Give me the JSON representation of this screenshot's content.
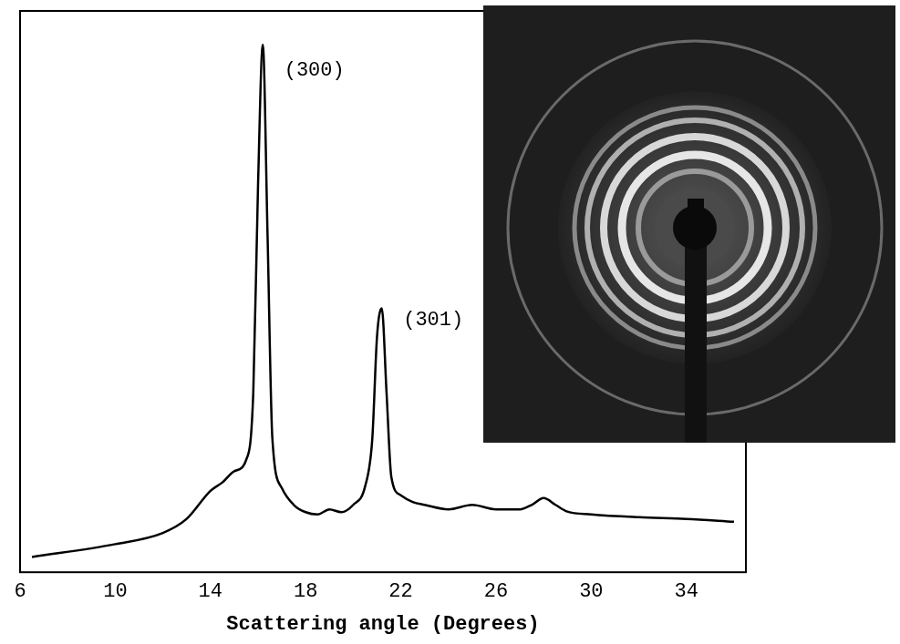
{
  "chart_data": {
    "type": "line",
    "x_label": "Scattering angle (Degrees)",
    "x": [
      6.5,
      10,
      12,
      13,
      14,
      14.5,
      15,
      15.5,
      15.8,
      16.0,
      16.2,
      16.4,
      16.6,
      17,
      17.5,
      18,
      18.5,
      19,
      19.5,
      20,
      20.5,
      20.8,
      21.0,
      21.2,
      21.4,
      21.6,
      22,
      22.5,
      23,
      24,
      25,
      26,
      27,
      27.5,
      28,
      28.5,
      29,
      30,
      32,
      34,
      36
    ],
    "values": [
      2.7,
      5,
      7,
      9.5,
      14.5,
      16,
      18,
      20,
      32,
      69,
      94,
      60,
      24,
      15,
      12,
      10.7,
      10.3,
      11.2,
      10.7,
      12,
      15.3,
      23.7,
      42,
      47,
      32,
      17,
      13.7,
      12.5,
      12,
      11.2,
      12,
      11.2,
      11.2,
      12,
      13.2,
      12,
      10.8,
      10.3,
      9.8,
      9.5,
      9
    ],
    "color": "#000000",
    "xlim": [
      6,
      36.5
    ],
    "xticks": [
      6,
      10,
      14,
      18,
      22,
      26,
      30,
      34
    ],
    "ylim": [
      0,
      100
    ],
    "tick_labels": "x",
    "grid": false,
    "annotations": [
      {
        "text": "(300)",
        "x": 17.1,
        "y": 89.5
      },
      {
        "text": "(301)",
        "x": 22.1,
        "y": 45
      }
    ]
  }
}
